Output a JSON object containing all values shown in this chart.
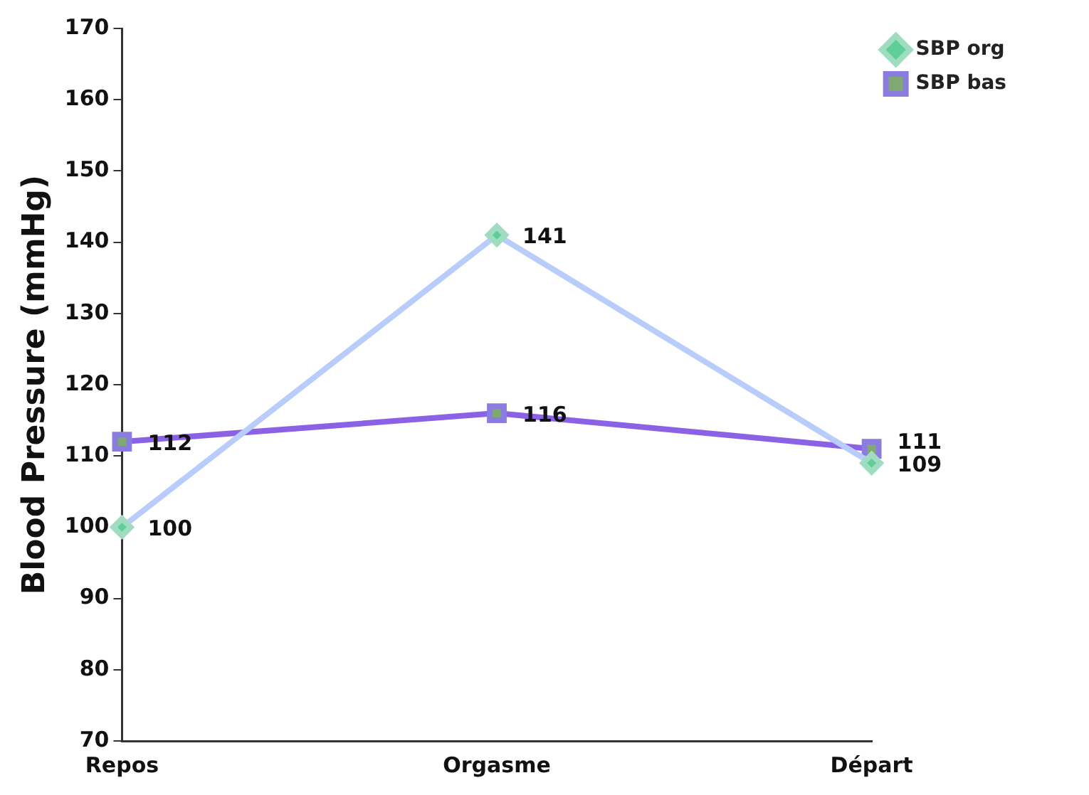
{
  "chart_data": {
    "type": "line",
    "ylabel": "Blood Pressure (mmHg)",
    "categories": [
      "Repos",
      "Orgasme",
      "Départ"
    ],
    "series": [
      {
        "name": "SBP org",
        "color": "#b8cdfb",
        "marker": "diamond",
        "values": [
          100,
          141,
          109
        ]
      },
      {
        "name": "SBP bas",
        "color": "#8b62e6",
        "marker": "square",
        "values": [
          112,
          116,
          111
        ]
      }
    ],
    "ylim": [
      70,
      170
    ],
    "yticks": [
      70,
      80,
      90,
      100,
      110,
      120,
      130,
      140,
      150,
      160,
      170
    ],
    "grid": false,
    "legend": "top right",
    "data_labels": true
  }
}
